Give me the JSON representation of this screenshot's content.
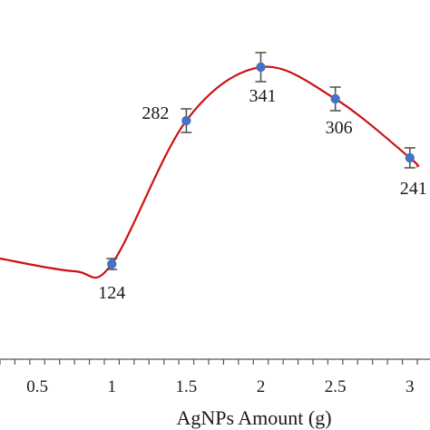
{
  "chart_data": {
    "type": "line",
    "title": "",
    "xlabel": "AgNPs Amount (g)",
    "ylabel": "",
    "x": [
      1,
      1.5,
      2,
      2.5,
      3
    ],
    "series": [
      {
        "values": [
          124,
          282,
          341,
          306,
          241
        ],
        "errors": [
          6,
          13,
          16,
          13,
          11
        ]
      }
    ],
    "curve_extension_left": {
      "x": 0.25,
      "y": 130
    },
    "curve_extension_right": {
      "x": 3.05,
      "y": 231
    },
    "data_labels": [
      "124",
      "282",
      "341",
      "306",
      "241"
    ],
    "xticks": [
      0.5,
      1,
      1.5,
      2,
      2.5,
      3
    ],
    "xtick_labels": [
      "0.5",
      "1",
      "1.5",
      "2",
      "2.5",
      "3"
    ],
    "xlim": [
      0.25,
      3.05
    ],
    "ylim": [
      20,
      385
    ],
    "grid": false,
    "legend": "none",
    "colors": {
      "curve": "#cc1111",
      "marker": "#4472c4",
      "errorbar": "#555555",
      "axis": "#555555"
    }
  }
}
